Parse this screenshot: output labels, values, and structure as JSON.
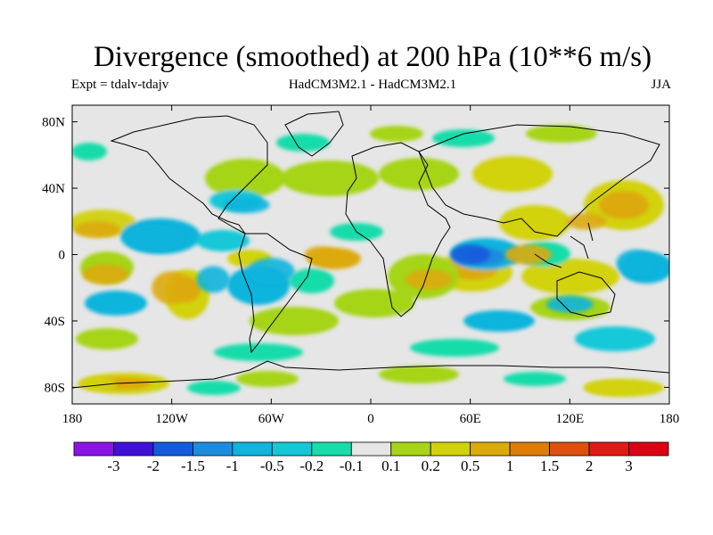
{
  "chart_data": {
    "type": "heatmap",
    "title": "Divergence (smoothed) at 200 hPa (10**6 m/s)",
    "subtitle_left": "Expt = tdalv-tdajv",
    "subtitle_center": "HadCM3M2.1 - HadCM3M2.1",
    "subtitle_right": "JJA",
    "xlim": [
      -180,
      180
    ],
    "ylim": [
      -90,
      90
    ],
    "x_ticks": [
      {
        "value": -180,
        "label": "180"
      },
      {
        "value": -120,
        "label": "120W"
      },
      {
        "value": -60,
        "label": "60W"
      },
      {
        "value": 0,
        "label": "0"
      },
      {
        "value": 60,
        "label": "60E"
      },
      {
        "value": 120,
        "label": "120E"
      },
      {
        "value": 180,
        "label": "180"
      }
    ],
    "y_ticks": [
      {
        "value": 80,
        "label": "80N"
      },
      {
        "value": 40,
        "label": "40N"
      },
      {
        "value": 0,
        "label": "0"
      },
      {
        "value": -40,
        "label": "40S"
      },
      {
        "value": -80,
        "label": "80S"
      }
    ],
    "colorbar": {
      "levels": [
        "-3",
        "-2",
        "-1.5",
        "-1",
        "-0.5",
        "-0.2",
        "-0.1",
        "0.1",
        "0.2",
        "0.5",
        "1",
        "1.5",
        "2",
        "3"
      ],
      "colors": [
        "#8a14e6",
        "#3f10d6",
        "#145adc",
        "#1e8cdc",
        "#10b4dc",
        "#14c8d8",
        "#18dcaa",
        "#e6e6e6",
        "#a6d416",
        "#d2d20a",
        "#dcaa0a",
        "#dc7d0a",
        "#dc5010",
        "#e01a14",
        "#dc0014"
      ]
    },
    "regions": [
      {
        "lon": -165,
        "lat": 15,
        "rx": 14,
        "ry": 5,
        "level": 0.6
      },
      {
        "lon": -130,
        "lat": 10,
        "rx": 18,
        "ry": 8,
        "level": -0.6
      },
      {
        "lon": -160,
        "lat": -12,
        "rx": 14,
        "ry": 6,
        "level": 0.6
      },
      {
        "lon": -120,
        "lat": -20,
        "rx": 12,
        "ry": 10,
        "level": 0.8
      },
      {
        "lon": -95,
        "lat": -15,
        "rx": 10,
        "ry": 8,
        "level": -0.6
      },
      {
        "lon": -60,
        "lat": -10,
        "rx": 14,
        "ry": 8,
        "level": -0.6
      },
      {
        "lon": -30,
        "lat": 0,
        "rx": 10,
        "ry": 5,
        "level": 0.8
      },
      {
        "lon": -75,
        "lat": 30,
        "rx": 14,
        "ry": 5,
        "level": -0.6
      },
      {
        "lon": 35,
        "lat": -15,
        "rx": 14,
        "ry": 6,
        "level": 0.6
      },
      {
        "lon": 60,
        "lat": 0,
        "rx": 12,
        "ry": 6,
        "level": -1.6
      },
      {
        "lon": 95,
        "lat": 0,
        "rx": 14,
        "ry": 6,
        "level": 0.8
      },
      {
        "lon": 130,
        "lat": 20,
        "rx": 12,
        "ry": 5,
        "level": 0.6
      },
      {
        "lon": 160,
        "lat": -5,
        "rx": 12,
        "ry": 8,
        "level": -0.6
      },
      {
        "lon": 120,
        "lat": -30,
        "rx": 14,
        "ry": 5,
        "level": -0.5
      },
      {
        "lon": -165,
        "lat": -78,
        "rx": 12,
        "ry": 4,
        "level": 0.4
      },
      {
        "lon": 145,
        "lat": -80,
        "rx": 16,
        "ry": 4,
        "level": 0.4
      }
    ]
  }
}
